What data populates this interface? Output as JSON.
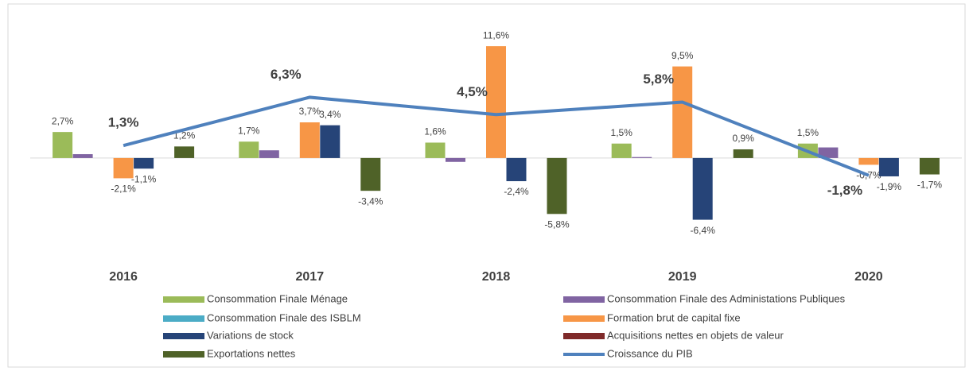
{
  "chart_data": {
    "type": "bar",
    "categories": [
      "2016",
      "2017",
      "2018",
      "2019",
      "2020"
    ],
    "ylim": [
      -8,
      14
    ],
    "series": [
      {
        "name": "Consommation Finale Ménage",
        "color": "#9bbb59",
        "values": [
          2.7,
          1.7,
          1.6,
          1.5,
          1.5
        ],
        "value_labels": [
          "2,7%",
          "1,7%",
          "1,6%",
          "1,5%",
          "1,5%"
        ]
      },
      {
        "name": "Consommation Finale des Administations Publiques",
        "color": "#8064a2",
        "values": [
          0.4,
          0.8,
          -0.4,
          0.1,
          1.1
        ]
      },
      {
        "name": "Consommation Finale des ISBLM",
        "color": "#4bacc6",
        "values": [
          0,
          0,
          0,
          0,
          0
        ]
      },
      {
        "name": "Formation brut de capital fixe",
        "color": "#f79646",
        "values": [
          -2.1,
          3.7,
          11.6,
          9.5,
          -0.7
        ],
        "value_labels": [
          "-2,1%",
          "3,7%",
          "11,6%",
          "9,5%",
          "-0,7%"
        ]
      },
      {
        "name": "Variations de stock",
        "color": "#264478",
        "values": [
          -1.1,
          3.4,
          -2.4,
          -6.4,
          -1.9
        ],
        "value_labels": [
          "-1,1%",
          "3,4%",
          "-2,4%",
          "-6,4%",
          "-1,9%"
        ]
      },
      {
        "name": "Acquisitions nettes en objets de valeur",
        "color": "#7f2a2a",
        "values": [
          0,
          0,
          0,
          0,
          0
        ]
      },
      {
        "name": "Exportations nettes",
        "color": "#4f6228",
        "values": [
          1.2,
          -3.4,
          -5.8,
          0.9,
          -1.7
        ],
        "value_labels": [
          "1,2%",
          "-3,4%",
          "-5,8%",
          "0,9%",
          "-1,7%"
        ]
      },
      {
        "name": "Croissance du PIB",
        "color": "#4f81bd",
        "type": "line",
        "values": [
          1.3,
          6.3,
          4.5,
          5.8,
          -1.8
        ],
        "value_labels": [
          "1,3%",
          "6,3%",
          "4,5%",
          "5,8%",
          "-1,8%"
        ]
      }
    ]
  }
}
